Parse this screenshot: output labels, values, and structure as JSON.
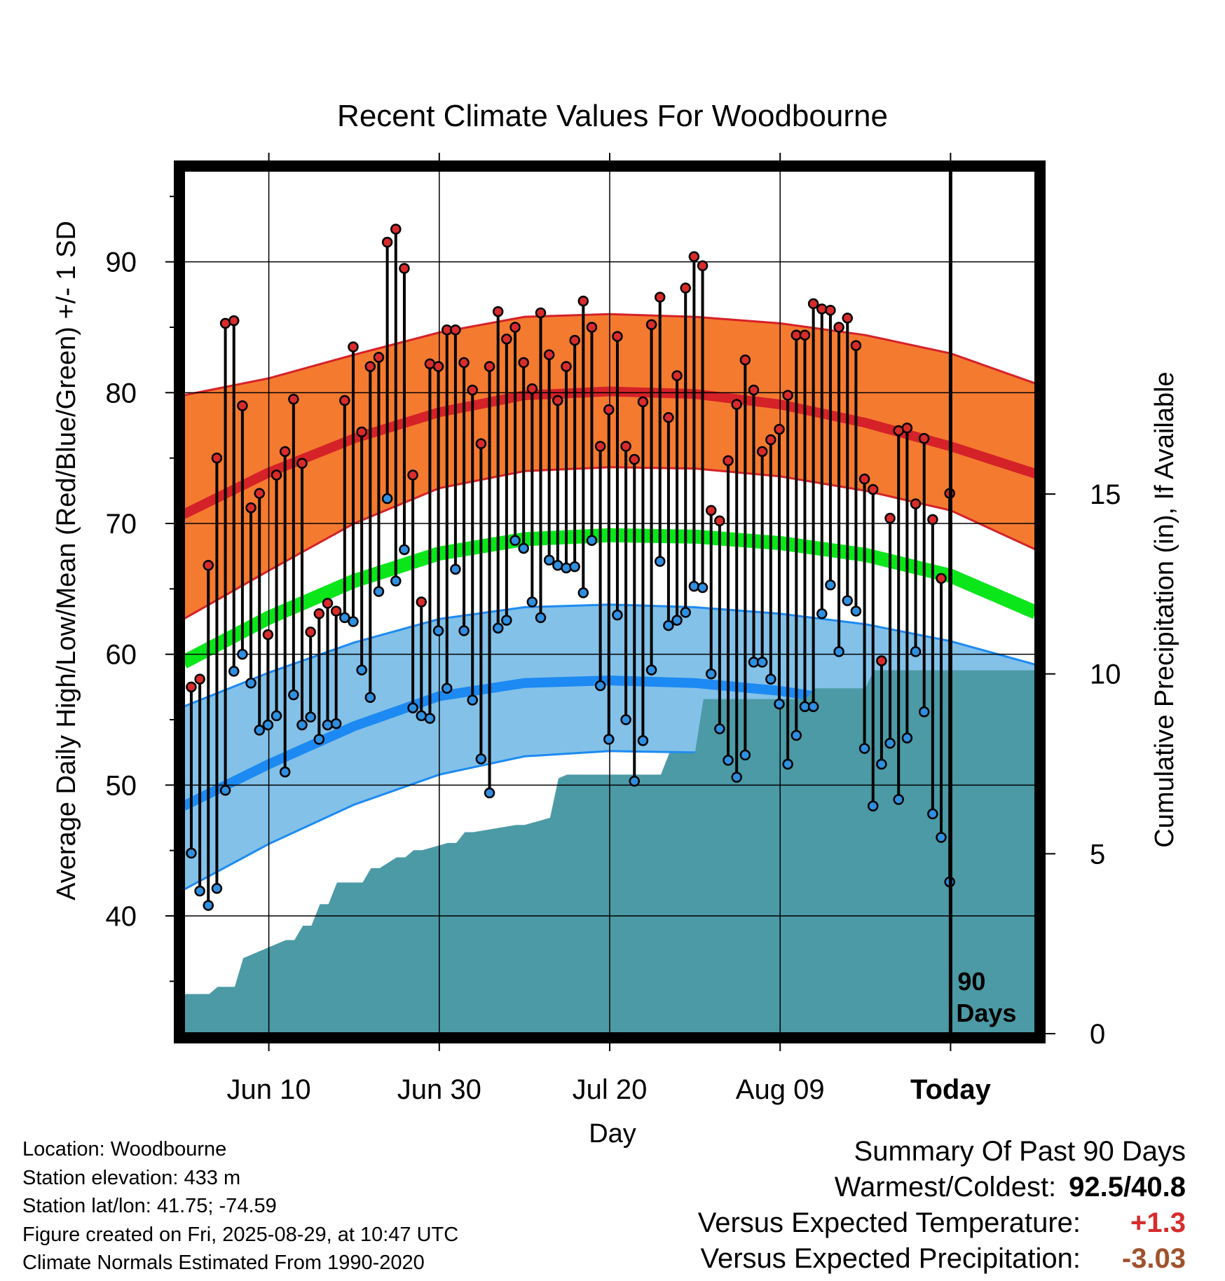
{
  "title": "Recent Climate Values For Woodbourne",
  "chart_data": {
    "type": "line",
    "title": "Recent Climate Values For Woodbourne",
    "xlabel": "Day",
    "ylabel_left": "Average Daily High/Low/Mean (Red/Blue/Green) +/- 1 SD",
    "ylabel_right": "Cumulative Precipitation (in), If Available",
    "x_tick_labels": [
      "Jun 10",
      "Jun 30",
      "Jul 20",
      "Aug 09",
      "Today"
    ],
    "x_tick_days": [
      10,
      30,
      50,
      70,
      90
    ],
    "x_range": [
      0,
      100
    ],
    "y_left_ticks": [
      40,
      50,
      60,
      70,
      80,
      90
    ],
    "y_left_range": [
      31,
      97
    ],
    "y_right_ticks": [
      0,
      5,
      10,
      15
    ],
    "y_right_range": [
      0,
      24
    ],
    "grid": true,
    "today_marker": {
      "day": 90,
      "label_line1": "90",
      "label_line2": "Days"
    },
    "normals": {
      "days": [
        0,
        10,
        20,
        30,
        40,
        50,
        60,
        70,
        80,
        90,
        100
      ],
      "high_mean": [
        70.7,
        73.9,
        76.5,
        78.5,
        79.8,
        80.1,
        79.9,
        79.1,
        77.7,
        75.9,
        73.8
      ],
      "high_upper": [
        79.8,
        81.1,
        82.9,
        84.6,
        85.8,
        86.0,
        85.8,
        85.3,
        84.4,
        83.0,
        80.7
      ],
      "high_lower": [
        62.7,
        66.4,
        70.0,
        72.7,
        74.0,
        74.3,
        74.2,
        73.6,
        72.5,
        71.0,
        68.0
      ],
      "mean_normal": [
        59.4,
        62.8,
        65.6,
        67.7,
        68.8,
        69.1,
        69.0,
        68.5,
        67.6,
        66.0,
        63.2
      ],
      "low_mean": [
        48.4,
        51.6,
        54.5,
        56.8,
        57.8,
        58.0,
        57.8,
        57.2,
        56.2,
        54.8,
        52.3
      ],
      "low_upper": [
        56.0,
        58.6,
        60.9,
        62.7,
        63.6,
        63.8,
        63.6,
        63.1,
        62.3,
        61.0,
        59.2
      ],
      "low_lower": [
        42.0,
        45.5,
        48.5,
        50.8,
        52.2,
        52.6,
        52.5,
        51.7,
        50.2,
        48.2,
        46.0
      ]
    },
    "series": [
      {
        "name": "High",
        "values": [
          57.5,
          58.1,
          66.8,
          75.0,
          85.3,
          85.5,
          79.0,
          71.2,
          72.3,
          61.5,
          73.7,
          75.5,
          79.5,
          74.6,
          61.7,
          63.1,
          63.9,
          63.3,
          79.4,
          83.5,
          77.0,
          82.0,
          82.7,
          91.5,
          92.5,
          89.5,
          73.7,
          64.0,
          82.2,
          82.0,
          84.8,
          84.8,
          82.3,
          80.2,
          76.1,
          82.0,
          86.2,
          84.1,
          85.0,
          82.3,
          80.3,
          86.1,
          82.9,
          79.4,
          82.0,
          84.0,
          87.0,
          85.0,
          75.9,
          78.7,
          84.3,
          75.9,
          74.9,
          79.3,
          85.2,
          87.3,
          78.1,
          81.3,
          88.0,
          90.4,
          89.7,
          71.0,
          70.2,
          74.8,
          79.1,
          82.5,
          80.2,
          75.5,
          76.4,
          77.2,
          79.8,
          84.4,
          84.4,
          86.8,
          86.4,
          86.3,
          85.0,
          85.7,
          83.6,
          73.4,
          72.6,
          59.5,
          70.4,
          77.1,
          77.3,
          71.5,
          76.5,
          70.3,
          65.8,
          72.3
        ]
      },
      {
        "name": "Low",
        "values": [
          44.8,
          41.9,
          40.8,
          42.1,
          49.6,
          58.7,
          60.0,
          57.8,
          54.2,
          54.6,
          55.3,
          51.0,
          56.9,
          54.6,
          55.2,
          53.5,
          54.6,
          54.7,
          62.8,
          62.5,
          58.8,
          56.7,
          64.8,
          71.9,
          65.6,
          68.0,
          55.9,
          55.3,
          55.1,
          61.8,
          57.4,
          66.5,
          61.8,
          56.5,
          52.0,
          49.4,
          62.0,
          62.6,
          68.7,
          68.1,
          64.0,
          62.8,
          67.2,
          66.8,
          66.6,
          66.7,
          64.7,
          68.7,
          57.6,
          53.5,
          63.0,
          55.0,
          50.3,
          53.4,
          58.8,
          67.1,
          62.2,
          62.6,
          63.2,
          65.2,
          65.1,
          58.5,
          54.3,
          51.9,
          50.6,
          52.3,
          59.4,
          59.4,
          58.1,
          56.2,
          51.6,
          53.8,
          56.0,
          56.0,
          63.1,
          65.3,
          60.2,
          64.1,
          63.3,
          52.8,
          48.4,
          51.6,
          53.2,
          48.9,
          53.6,
          60.2,
          55.6,
          47.8,
          46.0,
          42.6
        ]
      }
    ],
    "precipitation_cumulative": {
      "days": [
        0,
        3,
        4,
        6,
        7,
        12,
        13,
        14,
        15,
        16,
        17,
        18,
        21,
        22,
        23,
        25,
        26,
        27,
        28,
        31,
        32,
        33,
        34,
        39,
        40,
        43,
        44,
        45,
        56,
        57,
        60,
        61,
        73,
        74,
        80,
        81,
        100
      ],
      "inches": [
        1.1,
        1.1,
        1.3,
        1.3,
        2.1,
        2.6,
        2.6,
        3.0,
        3.0,
        3.6,
        3.6,
        4.2,
        4.2,
        4.6,
        4.6,
        4.9,
        4.9,
        5.1,
        5.1,
        5.3,
        5.3,
        5.6,
        5.6,
        5.8,
        5.8,
        6.0,
        7.1,
        7.2,
        7.2,
        7.8,
        7.8,
        9.3,
        9.3,
        9.6,
        9.6,
        10.1,
        10.1
      ]
    }
  },
  "info": {
    "location": "Location: Woodbourne",
    "elevation": "Station elevation: 433 m",
    "latlon": "Station lat/lon: 41.75; -74.59",
    "created": "Figure created on Fri, 2025-08-29, at 10:47 UTC",
    "normals_source": "Climate Normals Estimated From 1990-2020"
  },
  "summary": {
    "title": "Summary Of Past 90 Days",
    "warmest_coldest_label": "Warmest/Coldest:",
    "warmest_coldest_value": "92.5/40.8",
    "temp_label": "Versus Expected Temperature:",
    "temp_value": "+1.3",
    "precip_label": "Versus Expected Precipitation:",
    "precip_value": "-3.03"
  },
  "colors": {
    "high_band": "#f47a30",
    "high_line": "#d52128",
    "low_band": "#83c1e8",
    "low_line": "#1c8af2",
    "mean_line": "#0ae61a",
    "precip_fill": "#4b9aa5",
    "high_marker": "#d92b2b",
    "low_marker": "#2f8fe0",
    "temp_value": "#d72c2c",
    "precip_value": "#a0522d"
  }
}
